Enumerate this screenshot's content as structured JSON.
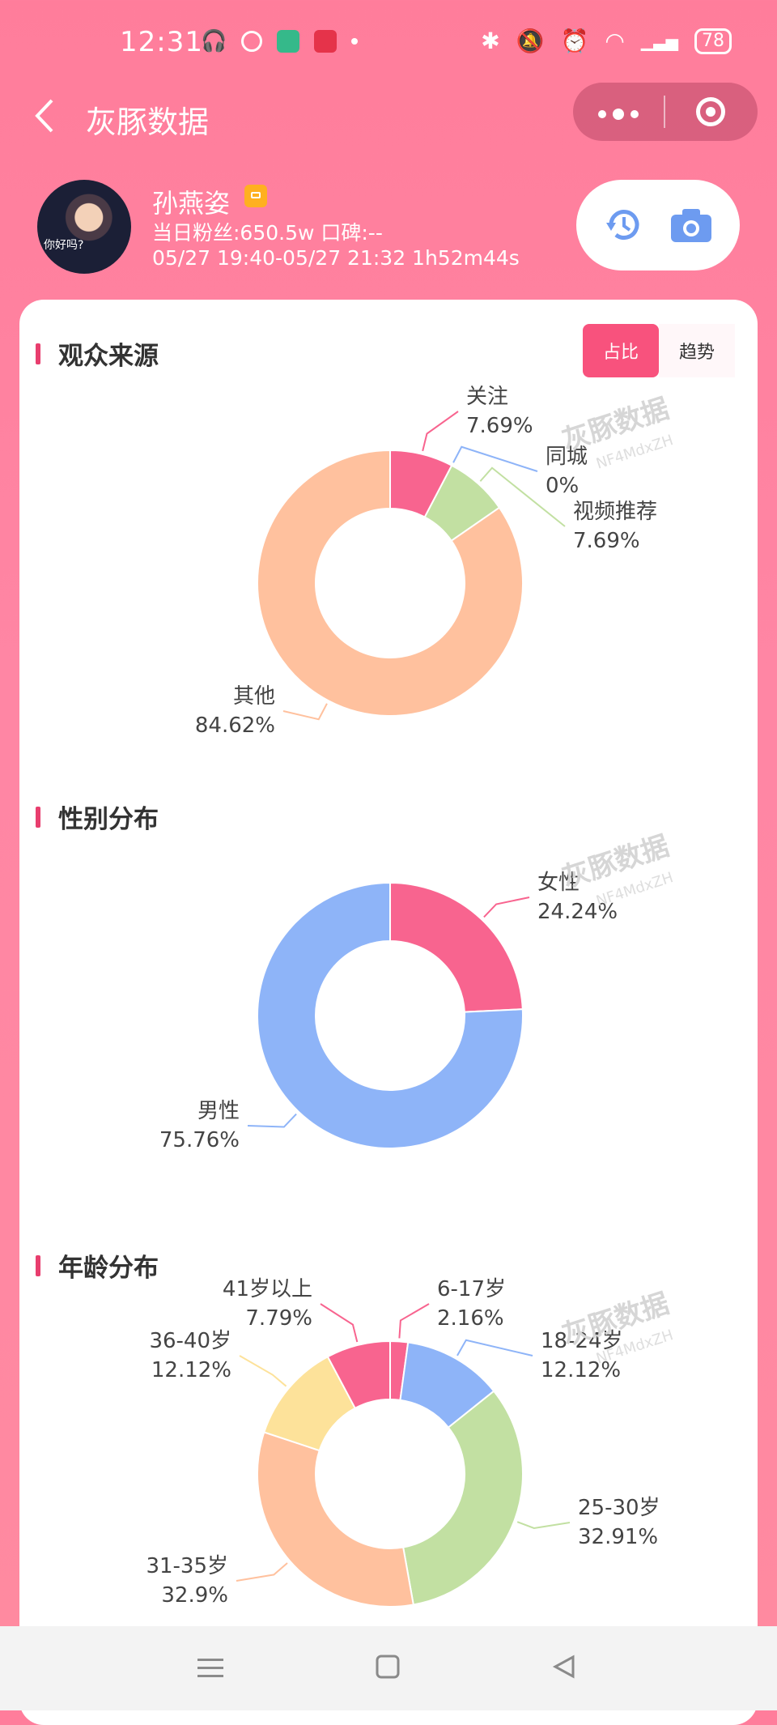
{
  "status_bar": {
    "time": "12:31",
    "battery": "78"
  },
  "titlebar": {
    "title": "灰豚数据"
  },
  "profile": {
    "name": "孙燕姿",
    "fans": "当日粉丝:650.5w   口碑:--",
    "time_range": "05/27 19:40-05/27 21:32   1h52m44s",
    "avatar_text": "你好吗?"
  },
  "watermark": {
    "text": "灰豚数据",
    "code": "NF4MdxZH"
  },
  "toggle": {
    "ratio": "占比",
    "trend": "趋势"
  },
  "sections": {
    "audience": {
      "title": "观众来源"
    },
    "gender": {
      "title": "性别分布"
    },
    "age": {
      "title": "年龄分布"
    }
  },
  "chart_data": [
    {
      "type": "pie",
      "title": "观众来源",
      "slices": [
        {
          "label": "关注",
          "value": 7.69,
          "display": "7.69%",
          "color": "#f8648f"
        },
        {
          "label": "同城",
          "value": 0,
          "display": "0%",
          "color": "#8eb4f8"
        },
        {
          "label": "视频推荐",
          "value": 7.69,
          "display": "7.69%",
          "color": "#c2e0a2"
        },
        {
          "label": "其他",
          "value": 84.62,
          "display": "84.62%",
          "color": "#ffc19e"
        }
      ]
    },
    {
      "type": "pie",
      "title": "性别分布",
      "slices": [
        {
          "label": "女性",
          "value": 24.24,
          "display": "24.24%",
          "color": "#f8648f"
        },
        {
          "label": "男性",
          "value": 75.76,
          "display": "75.76%",
          "color": "#8eb4f8"
        }
      ]
    },
    {
      "type": "pie",
      "title": "年龄分布",
      "slices": [
        {
          "label": "6-17岁",
          "value": 2.16,
          "display": "2.16%",
          "color": "#f8648f"
        },
        {
          "label": "18-24岁",
          "value": 12.12,
          "display": "12.12%",
          "color": "#8eb4f8"
        },
        {
          "label": "25-30岁",
          "value": 32.91,
          "display": "32.91%",
          "color": "#c2e0a2"
        },
        {
          "label": "31-35岁",
          "value": 32.9,
          "display": "32.9%",
          "color": "#ffc19e"
        },
        {
          "label": "36-40岁",
          "value": 12.12,
          "display": "12.12%",
          "color": "#fde29a"
        },
        {
          "label": "41岁以上",
          "value": 7.79,
          "display": "7.79%",
          "color": "#f8648f"
        }
      ]
    }
  ]
}
